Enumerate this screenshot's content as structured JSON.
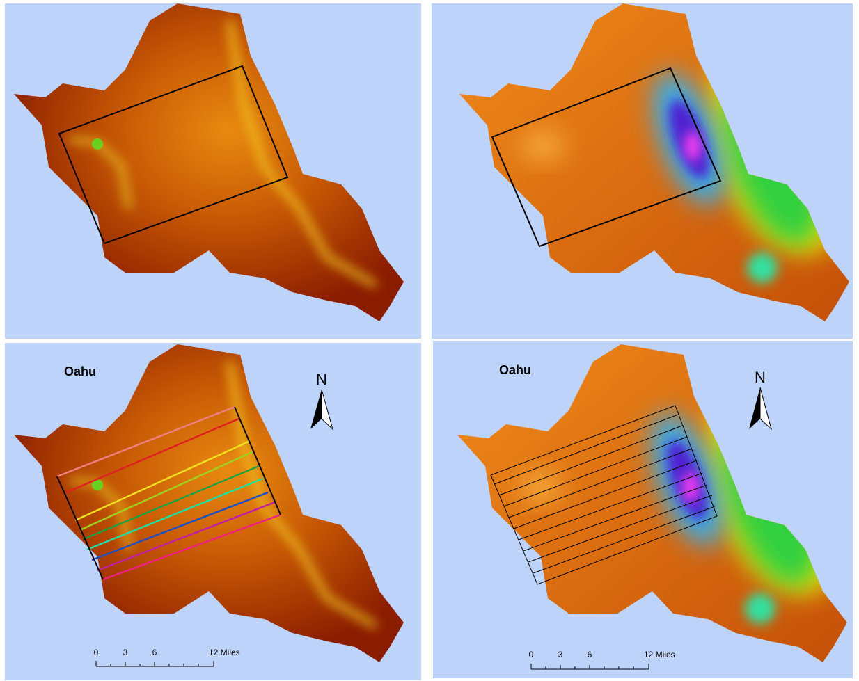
{
  "panels": [
    {},
    {},
    {
      "title": "Oahu",
      "north": "N",
      "scale_labels": [
        "0",
        "3",
        "6",
        "12 Miles"
      ]
    },
    {
      "title": "Oahu",
      "north": "N",
      "scale_labels": [
        "0",
        "3",
        "6",
        "12 Miles"
      ]
    }
  ]
}
